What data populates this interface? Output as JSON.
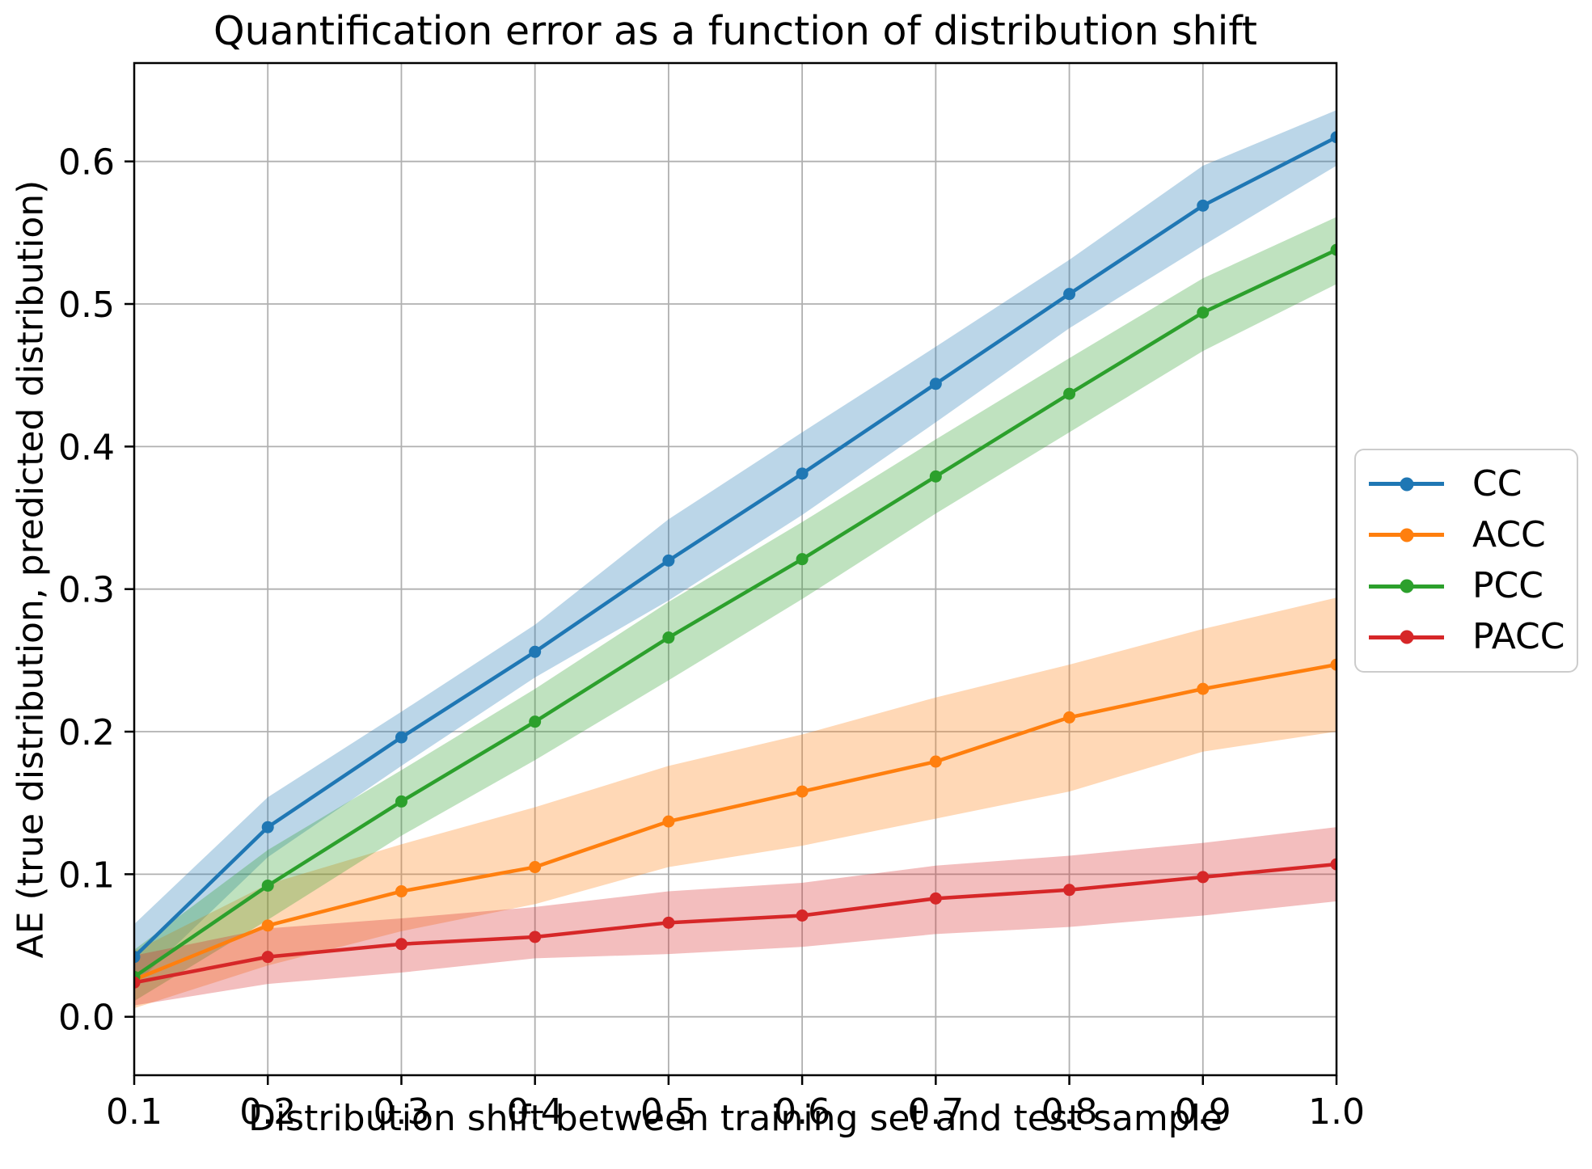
{
  "title": "Quantification error as a function of distribution shift",
  "xlabel": "Distribution shift between training set and test sample",
  "ylabel": "AE (true distribution, predicted distribution)",
  "colors": {
    "background": "#ffffff",
    "grid": "#b0b0b0",
    "spine": "#000000",
    "legend_border": "#cccccc",
    "band_alpha": 0.3
  },
  "legend": {
    "entries": [
      "CC",
      "ACC",
      "PCC",
      "PACC"
    ],
    "position": "right-outside"
  },
  "chart_data": {
    "type": "line",
    "x": [
      0.1,
      0.2,
      0.3,
      0.4,
      0.5,
      0.6,
      0.7,
      0.8,
      0.9,
      1.0
    ],
    "xlim": [
      0.1,
      1.0
    ],
    "ylim": [
      -0.041,
      0.669
    ],
    "grid": true,
    "x_ticks": [
      0.1,
      0.2,
      0.3,
      0.4,
      0.5,
      0.6,
      0.7,
      0.8,
      0.9,
      1.0
    ],
    "x_tick_labels": [
      "0.1",
      "0.2",
      "0.3",
      "0.4",
      "0.5",
      "0.6",
      "0.7",
      "0.8",
      "0.9",
      "1.0"
    ],
    "y_ticks": [
      0.0,
      0.1,
      0.2,
      0.3,
      0.4,
      0.5,
      0.6
    ],
    "y_tick_labels": [
      "0.0",
      "0.1",
      "0.2",
      "0.3",
      "0.4",
      "0.5",
      "0.6"
    ],
    "series": [
      {
        "name": "CC",
        "color": "#1f77b4",
        "values": [
          0.042,
          0.133,
          0.196,
          0.256,
          0.32,
          0.381,
          0.444,
          0.507,
          0.569,
          0.617
        ],
        "band_lower": [
          0.022,
          0.112,
          0.176,
          0.238,
          0.292,
          0.352,
          0.417,
          0.483,
          0.541,
          0.597
        ],
        "band_upper": [
          0.065,
          0.154,
          0.214,
          0.275,
          0.349,
          0.41,
          0.47,
          0.531,
          0.597,
          0.636
        ]
      },
      {
        "name": "ACC",
        "color": "#ff7f0e",
        "values": [
          0.026,
          0.064,
          0.088,
          0.105,
          0.137,
          0.158,
          0.179,
          0.21,
          0.23,
          0.247
        ],
        "band_lower": [
          0.006,
          0.036,
          0.06,
          0.079,
          0.105,
          0.12,
          0.139,
          0.158,
          0.186,
          0.2
        ],
        "band_upper": [
          0.046,
          0.093,
          0.121,
          0.147,
          0.176,
          0.198,
          0.224,
          0.247,
          0.272,
          0.294
        ]
      },
      {
        "name": "PCC",
        "color": "#2ca02c",
        "values": [
          0.028,
          0.092,
          0.151,
          0.207,
          0.266,
          0.321,
          0.379,
          0.437,
          0.494,
          0.538
        ],
        "band_lower": [
          0.011,
          0.068,
          0.127,
          0.18,
          0.236,
          0.293,
          0.353,
          0.41,
          0.467,
          0.514
        ],
        "band_upper": [
          0.047,
          0.117,
          0.173,
          0.23,
          0.291,
          0.347,
          0.405,
          0.462,
          0.518,
          0.561
        ]
      },
      {
        "name": "PACC",
        "color": "#d62728",
        "values": [
          0.024,
          0.042,
          0.051,
          0.056,
          0.066,
          0.071,
          0.083,
          0.089,
          0.098,
          0.107
        ],
        "band_lower": [
          0.008,
          0.023,
          0.031,
          0.041,
          0.044,
          0.049,
          0.058,
          0.063,
          0.071,
          0.081
        ],
        "band_upper": [
          0.043,
          0.062,
          0.069,
          0.077,
          0.088,
          0.094,
          0.106,
          0.113,
          0.122,
          0.133
        ]
      }
    ]
  }
}
